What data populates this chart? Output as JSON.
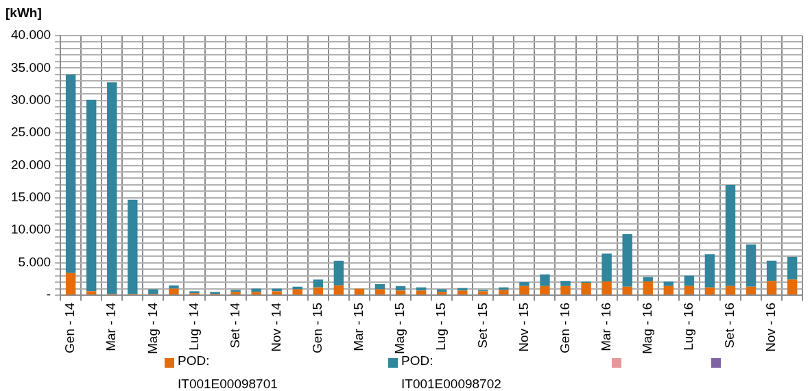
{
  "chart_data": {
    "type": "bar",
    "ylabel": "[kWh]",
    "stacked": true,
    "grid": true,
    "legend": "bottom",
    "categories": [
      "Gen - 14",
      null,
      "Mar - 14",
      null,
      "Mag - 14",
      null,
      "Lug - 14",
      null,
      "Set - 14",
      null,
      "Nov - 14",
      null,
      "Gen - 15",
      null,
      "Mar - 15",
      null,
      "Mag - 15",
      null,
      "Lug - 15",
      null,
      "Set - 15",
      null,
      "Nov - 15",
      null,
      "Gen - 16",
      null,
      "Mar - 16",
      null,
      "Mag - 16",
      null,
      "Lug - 16",
      null,
      "Set - 16",
      null,
      "Nov - 16",
      null
    ],
    "ylim": [
      0,
      40000
    ],
    "yticks": [
      {
        "value": 0,
        "label": "-"
      },
      {
        "value": 1000,
        "label": null
      },
      {
        "value": 2000,
        "label": null
      },
      {
        "value": 3000,
        "label": null
      },
      {
        "value": 4000,
        "label": null
      },
      {
        "value": 5000,
        "label": "5.000"
      },
      {
        "value": 6000,
        "label": null
      },
      {
        "value": 7000,
        "label": null
      },
      {
        "value": 8000,
        "label": null
      },
      {
        "value": 9000,
        "label": null
      },
      {
        "value": 10000,
        "label": "10.000"
      },
      {
        "value": 11000,
        "label": null
      },
      {
        "value": 12000,
        "label": null
      },
      {
        "value": 13000,
        "label": null
      },
      {
        "value": 14000,
        "label": null
      },
      {
        "value": 15000,
        "label": "15.000"
      },
      {
        "value": 16000,
        "label": null
      },
      {
        "value": 17000,
        "label": null
      },
      {
        "value": 18000,
        "label": null
      },
      {
        "value": 19000,
        "label": null
      },
      {
        "value": 20000,
        "label": "20.000"
      },
      {
        "value": 21000,
        "label": null
      },
      {
        "value": 22000,
        "label": null
      },
      {
        "value": 23000,
        "label": null
      },
      {
        "value": 24000,
        "label": null
      },
      {
        "value": 25000,
        "label": "25.000"
      },
      {
        "value": 26000,
        "label": null
      },
      {
        "value": 27000,
        "label": null
      },
      {
        "value": 28000,
        "label": null
      },
      {
        "value": 29000,
        "label": null
      },
      {
        "value": 30000,
        "label": "30.000"
      },
      {
        "value": 31000,
        "label": null
      },
      {
        "value": 32000,
        "label": null
      },
      {
        "value": 33000,
        "label": null
      },
      {
        "value": 34000,
        "label": null
      },
      {
        "value": 35000,
        "label": "35.000"
      },
      {
        "value": 36000,
        "label": null
      },
      {
        "value": 37000,
        "label": null
      },
      {
        "value": 38000,
        "label": null
      },
      {
        "value": 39000,
        "label": null
      },
      {
        "value": 40000,
        "label": "40.000"
      }
    ],
    "series": [
      {
        "name": "POD: IT001E00098701",
        "color": "#e46c0a",
        "values": [
          3400,
          600,
          200,
          200,
          200,
          1000,
          300,
          200,
          500,
          500,
          600,
          900,
          1200,
          1500,
          1000,
          900,
          700,
          700,
          500,
          700,
          600,
          800,
          1400,
          1400,
          1400,
          1900,
          2100,
          1300,
          2100,
          1400,
          1400,
          1200,
          1400,
          1300,
          2200,
          2400
        ]
      },
      {
        "name": "POD: IT001E00098702",
        "color": "#31859c",
        "values": [
          30600,
          29500,
          32600,
          14500,
          700,
          500,
          300,
          300,
          300,
          500,
          400,
          400,
          1200,
          3800,
          0,
          800,
          700,
          500,
          400,
          400,
          200,
          400,
          600,
          1800,
          800,
          200,
          4300,
          8100,
          700,
          700,
          1600,
          5100,
          15600,
          6500,
          3100,
          3500
        ]
      }
    ]
  }
}
